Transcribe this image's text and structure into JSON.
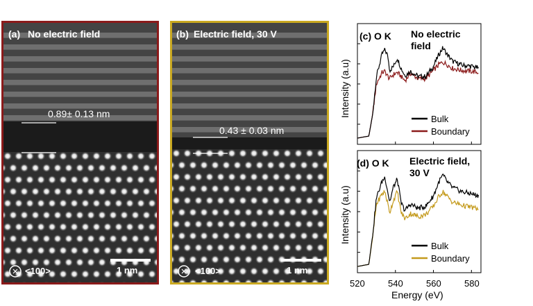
{
  "figure": {
    "panel_a": {
      "label": "(a)",
      "title": "No electric field",
      "measurement": "0.89± 0.13 nm",
      "zone_axis": "<100>",
      "scale_bar": "1 nm",
      "border_color": "#8b1a1a"
    },
    "panel_b": {
      "label": "(b)",
      "title": "Electric field, 30 V",
      "measurement": "0.43 ± 0.03 nm",
      "zone_axis": "<100>",
      "scale_bar": "1 nm",
      "border_color": "#c9a820"
    },
    "panel_c": {
      "label": "(c)",
      "edge": "O K",
      "condition": [
        "No electric",
        "field"
      ],
      "legend": [
        "Bulk",
        "Boundary"
      ]
    },
    "panel_d": {
      "label": "(d)",
      "edge": "O K",
      "condition": [
        "Electric field,",
        "30 V"
      ],
      "legend": [
        "Bulk",
        "Boundary"
      ]
    },
    "ylabel": "Intensity (a.u)",
    "xlabel": "Energy (eV)",
    "xticks": [
      "520",
      "540",
      "560",
      "580"
    ],
    "colors": {
      "bulk": "#000000",
      "boundary_c": "#8b1a1a",
      "boundary_d": "#c49a1c"
    }
  },
  "chart_data": [
    {
      "type": "line",
      "title": "(c) O K No electric field",
      "xlabel": "Energy (eV)",
      "ylabel": "Intensity (a.u)",
      "xlim": [
        520,
        585
      ],
      "series": [
        {
          "name": "Bulk",
          "x": [
            520,
            526,
            528,
            530,
            533,
            534.5,
            536,
            537,
            539,
            541,
            543,
            545,
            548,
            552,
            556,
            560,
            563,
            565,
            567,
            570,
            575,
            580,
            584
          ],
          "y": [
            0.02,
            0.04,
            0.25,
            0.62,
            0.84,
            0.88,
            0.82,
            0.68,
            0.72,
            0.8,
            0.7,
            0.63,
            0.67,
            0.62,
            0.62,
            0.72,
            0.84,
            0.9,
            0.84,
            0.77,
            0.73,
            0.72,
            0.7
          ]
        },
        {
          "name": "Boundary",
          "x": [
            520,
            526,
            528,
            530,
            533,
            534.5,
            536,
            537,
            539,
            541,
            543,
            545,
            548,
            552,
            556,
            560,
            563,
            565,
            567,
            570,
            575,
            580,
            584
          ],
          "y": [
            0.02,
            0.04,
            0.25,
            0.55,
            0.66,
            0.67,
            0.62,
            0.6,
            0.64,
            0.66,
            0.62,
            0.58,
            0.65,
            0.6,
            0.6,
            0.68,
            0.74,
            0.76,
            0.74,
            0.7,
            0.68,
            0.67,
            0.66
          ]
        }
      ]
    },
    {
      "type": "line",
      "title": "(d) O K Electric field, 30 V",
      "xlabel": "Energy (eV)",
      "ylabel": "Intensity (a.u)",
      "xlim": [
        520,
        585
      ],
      "series": [
        {
          "name": "Bulk",
          "x": [
            520,
            526,
            528,
            530,
            533,
            534.5,
            536,
            537,
            539,
            541,
            543,
            545,
            548,
            552,
            556,
            560,
            563,
            565,
            567,
            570,
            575,
            580,
            584
          ],
          "y": [
            0.02,
            0.04,
            0.32,
            0.68,
            0.84,
            0.88,
            0.74,
            0.64,
            0.79,
            0.86,
            0.63,
            0.56,
            0.62,
            0.58,
            0.6,
            0.7,
            0.84,
            0.9,
            0.84,
            0.78,
            0.74,
            0.72,
            0.7
          ]
        },
        {
          "name": "Boundary",
          "x": [
            520,
            526,
            528,
            530,
            533,
            534.5,
            536,
            537,
            539,
            541,
            543,
            545,
            548,
            552,
            556,
            560,
            563,
            565,
            567,
            570,
            575,
            580,
            584
          ],
          "y": [
            0.02,
            0.04,
            0.3,
            0.62,
            0.72,
            0.74,
            0.62,
            0.54,
            0.66,
            0.74,
            0.54,
            0.48,
            0.53,
            0.5,
            0.52,
            0.6,
            0.7,
            0.74,
            0.7,
            0.64,
            0.61,
            0.59,
            0.57
          ]
        }
      ]
    }
  ]
}
